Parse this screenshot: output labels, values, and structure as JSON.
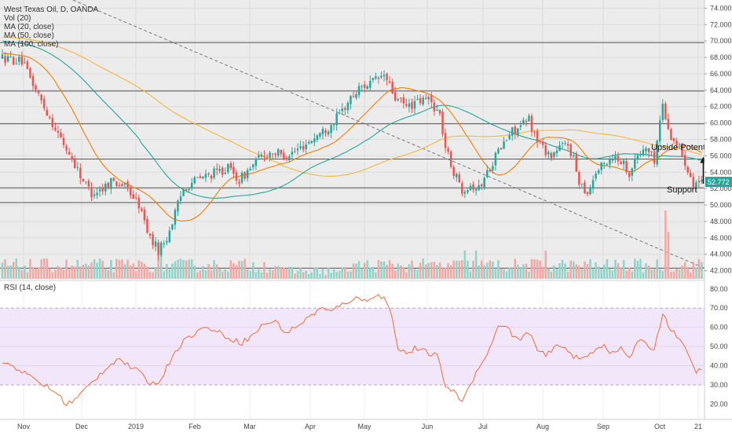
{
  "chart_data": [
    {
      "type": "candlestick",
      "title": "West Texas Oil, D, OANDA",
      "indicators": [
        "Vol (20)",
        "MA (20, close)",
        "MA (50, close)",
        "MA (100, close)"
      ],
      "price_scale": {
        "min": 41,
        "max": 75,
        "ticks": [
          "74.000",
          "72.000",
          "70.000",
          "68.000",
          "66.000",
          "64.000",
          "62.000",
          "60.000",
          "58.000",
          "56.000",
          "54.000",
          "52.000",
          "50.000",
          "48.000",
          "46.000",
          "44.000",
          "42.000"
        ]
      },
      "last_price": {
        "label": "52.772",
        "value": 52.772
      },
      "x_labels": [
        "Nov",
        "Dec",
        "2019",
        "Feb",
        "Mar",
        "Apr",
        "May",
        "Jun",
        "Jul",
        "Aug",
        "Sep",
        "Oct",
        "21"
      ],
      "horizontal_levels": [
        69.8,
        63.9,
        59.9,
        55.6,
        52.1,
        50.3,
        42.3
      ],
      "trendline": {
        "from": {
          "bar": 0,
          "price": 75
        },
        "to": {
          "bar": 252,
          "price": 42.3
        },
        "style": "dashed"
      },
      "annotations": {
        "upside": {
          "text": "Upside Potential",
          "arrow_from": 52.6,
          "arrow_to": 55.7
        },
        "support": {
          "text": "Support"
        }
      },
      "ma_colors": {
        "ma20": "#f57c00",
        "ma50": "#26a69a",
        "ma100": "#f5b73b"
      },
      "candle_colors": {
        "up": "#26a69a",
        "down": "#ef5350"
      },
      "keypoints": [
        [
          0,
          68
        ],
        [
          8,
          67.5
        ],
        [
          16,
          62
        ],
        [
          22,
          58
        ],
        [
          27,
          55
        ],
        [
          30,
          53
        ],
        [
          33,
          51.5
        ],
        [
          37,
          52
        ],
        [
          40,
          53
        ],
        [
          44,
          52.5
        ],
        [
          47,
          51.5
        ],
        [
          50,
          50
        ],
        [
          54,
          46
        ],
        [
          57,
          44.5
        ],
        [
          60,
          46
        ],
        [
          63,
          49
        ],
        [
          66,
          52
        ],
        [
          70,
          53
        ],
        [
          74,
          53.5
        ],
        [
          78,
          54
        ],
        [
          82,
          54.5
        ],
        [
          86,
          53
        ],
        [
          90,
          54.5
        ],
        [
          94,
          56
        ],
        [
          98,
          56.5
        ],
        [
          102,
          56
        ],
        [
          106,
          56.5
        ],
        [
          110,
          57.5
        ],
        [
          114,
          58.5
        ],
        [
          118,
          59.5
        ],
        [
          122,
          61
        ],
        [
          126,
          63
        ],
        [
          130,
          64.5
        ],
        [
          134,
          65
        ],
        [
          138,
          65.8
        ],
        [
          140,
          64.5
        ],
        [
          142,
          63
        ],
        [
          146,
          62
        ],
        [
          150,
          62.5
        ],
        [
          154,
          63
        ],
        [
          158,
          61
        ],
        [
          160,
          57
        ],
        [
          163,
          54
        ],
        [
          166,
          52
        ],
        [
          169,
          52.5
        ],
        [
          172,
          52
        ],
        [
          175,
          54
        ],
        [
          178,
          56
        ],
        [
          181,
          57.5
        ],
        [
          184,
          59
        ],
        [
          187,
          59.5
        ],
        [
          190,
          60.5
        ],
        [
          192,
          58.5
        ],
        [
          195,
          57
        ],
        [
          198,
          56
        ],
        [
          201,
          57
        ],
        [
          204,
          57.5
        ],
        [
          206,
          55.5
        ],
        [
          208,
          53
        ],
        [
          211,
          51.5
        ],
        [
          214,
          54
        ],
        [
          217,
          55
        ],
        [
          220,
          56
        ],
        [
          223,
          55.5
        ],
        [
          226,
          54
        ],
        [
          229,
          56
        ],
        [
          232,
          57
        ],
        [
          235,
          55.5
        ],
        [
          238,
          62.5
        ],
        [
          240,
          59
        ],
        [
          242,
          58
        ],
        [
          244,
          57
        ],
        [
          247,
          54.5
        ],
        [
          249,
          52.8
        ],
        [
          252,
          52.7
        ]
      ]
    },
    {
      "type": "line",
      "title": "RSI (14, close)",
      "ticks": [
        "80.00",
        "70.00",
        "60.00",
        "50.00",
        "40.00",
        "30.00",
        "20.00"
      ],
      "range": [
        12,
        84
      ],
      "band": [
        30,
        70
      ],
      "levels": [
        30,
        70
      ],
      "line_color": "#ef6c3a",
      "band_color": "#f2e6fb",
      "keypoints": [
        [
          0,
          42
        ],
        [
          5,
          39
        ],
        [
          10,
          34
        ],
        [
          15,
          30
        ],
        [
          20,
          25
        ],
        [
          23,
          20
        ],
        [
          26,
          22
        ],
        [
          30,
          28
        ],
        [
          34,
          34
        ],
        [
          38,
          40
        ],
        [
          42,
          44
        ],
        [
          45,
          40
        ],
        [
          48,
          38
        ],
        [
          52,
          32
        ],
        [
          55,
          30
        ],
        [
          58,
          36
        ],
        [
          62,
          48
        ],
        [
          66,
          54
        ],
        [
          70,
          58
        ],
        [
          74,
          60
        ],
        [
          78,
          57
        ],
        [
          82,
          54
        ],
        [
          86,
          52
        ],
        [
          90,
          56
        ],
        [
          94,
          62
        ],
        [
          98,
          63
        ],
        [
          102,
          57
        ],
        [
          106,
          61
        ],
        [
          110,
          65
        ],
        [
          114,
          70
        ],
        [
          118,
          68
        ],
        [
          122,
          72
        ],
        [
          126,
          75
        ],
        [
          130,
          74
        ],
        [
          134,
          77
        ],
        [
          137,
          75
        ],
        [
          139,
          70
        ],
        [
          142,
          50
        ],
        [
          145,
          46
        ],
        [
          148,
          49
        ],
        [
          152,
          47
        ],
        [
          156,
          45
        ],
        [
          159,
          30
        ],
        [
          162,
          26
        ],
        [
          165,
          22
        ],
        [
          168,
          30
        ],
        [
          171,
          40
        ],
        [
          174,
          45
        ],
        [
          177,
          58
        ],
        [
          180,
          62
        ],
        [
          183,
          56
        ],
        [
          186,
          53
        ],
        [
          189,
          58
        ],
        [
          192,
          48
        ],
        [
          195,
          45
        ],
        [
          198,
          49
        ],
        [
          201,
          51
        ],
        [
          204,
          46
        ],
        [
          207,
          43
        ],
        [
          210,
          45
        ],
        [
          213,
          49
        ],
        [
          216,
          51
        ],
        [
          219,
          46
        ],
        [
          222,
          49
        ],
        [
          225,
          44
        ],
        [
          228,
          52
        ],
        [
          231,
          52
        ],
        [
          234,
          48
        ],
        [
          237,
          68
        ],
        [
          240,
          58
        ],
        [
          243,
          55
        ],
        [
          246,
          45
        ],
        [
          249,
          37
        ],
        [
          252,
          38
        ]
      ]
    }
  ]
}
